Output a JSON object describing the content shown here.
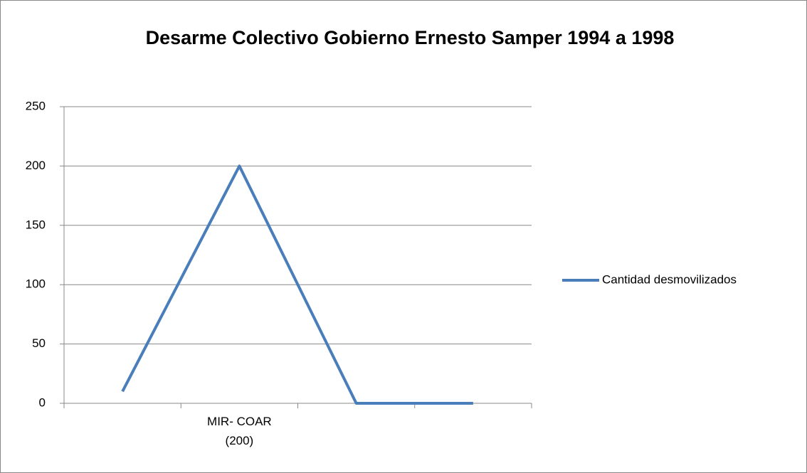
{
  "chart_data": {
    "type": "line",
    "title": "Desarme Colectivo Gobierno Ernesto Samper 1994 a 1998",
    "categories": [
      null,
      "MIR- COAR (200)",
      null,
      null
    ],
    "series": [
      {
        "name": "Cantidad desmovilizados",
        "color": "#4a7ebb",
        "values": [
          10,
          200,
          0,
          0
        ]
      }
    ],
    "ylim": [
      0,
      250
    ],
    "yticks": [
      0,
      50,
      100,
      150,
      200,
      250
    ],
    "grid": true,
    "legend": "right"
  }
}
